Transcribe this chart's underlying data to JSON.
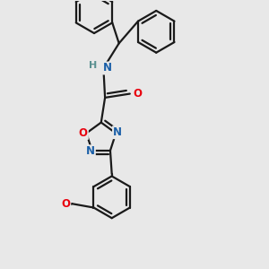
{
  "background_color": "#e8e8e8",
  "bond_color": "#1a1a1a",
  "bond_width": 1.6,
  "atom_colors": {
    "N": "#1a5fa8",
    "O": "#e8000d",
    "H": "#5a9090",
    "C": "#1a1a1a"
  },
  "font_size_atom": 8.5,
  "font_size_H": 8.0
}
